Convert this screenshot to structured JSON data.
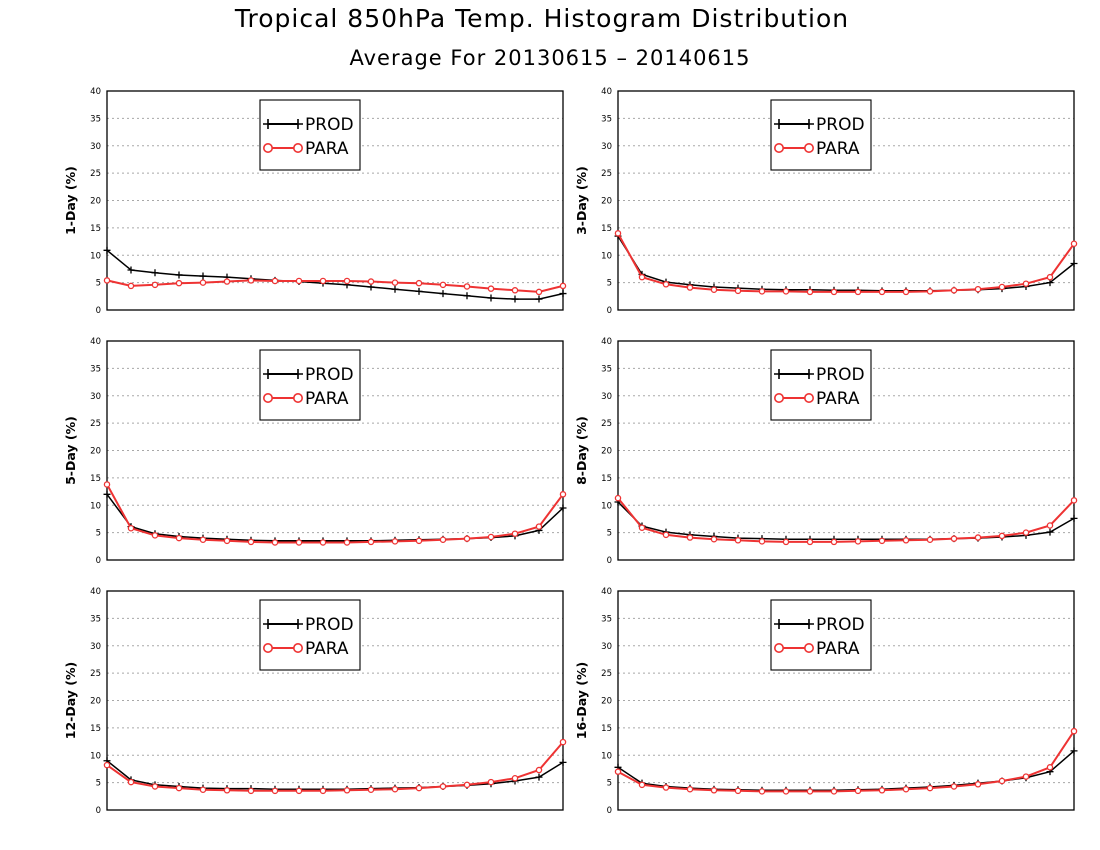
{
  "title": "Tropical 850hPa Temp. Histogram Distribution",
  "subtitle": "Average For 20130615 – 20140615",
  "colors": {
    "PROD": "#000000",
    "PARA": "#ee3333"
  },
  "chart_data": [
    {
      "type": "line",
      "ylabel": "1-Day (%)",
      "ylim": [
        0,
        40
      ],
      "yticks": [
        0,
        5,
        10,
        15,
        20,
        25,
        30,
        35,
        40
      ],
      "grid": true,
      "legend_position": "top-center",
      "series": [
        {
          "name": "PROD",
          "marker": "plus",
          "values": [
            10.9,
            7.3,
            6.8,
            6.4,
            6.2,
            6.0,
            5.7,
            5.4,
            5.2,
            4.9,
            4.6,
            4.2,
            3.8,
            3.4,
            3.0,
            2.6,
            2.2,
            2.0,
            2.0,
            3.0
          ]
        },
        {
          "name": "PARA",
          "marker": "circle",
          "values": [
            5.4,
            4.4,
            4.6,
            4.9,
            5.0,
            5.2,
            5.4,
            5.3,
            5.3,
            5.3,
            5.3,
            5.2,
            5.0,
            4.9,
            4.6,
            4.3,
            3.9,
            3.6,
            3.3,
            4.4
          ]
        }
      ]
    },
    {
      "type": "line",
      "ylabel": "3-Day (%)",
      "ylim": [
        0,
        40
      ],
      "yticks": [
        0,
        5,
        10,
        15,
        20,
        25,
        30,
        35,
        40
      ],
      "grid": true,
      "legend_position": "top-center",
      "series": [
        {
          "name": "PROD",
          "marker": "plus",
          "values": [
            13.5,
            6.5,
            5.1,
            4.6,
            4.2,
            4.0,
            3.8,
            3.7,
            3.7,
            3.6,
            3.6,
            3.5,
            3.5,
            3.5,
            3.6,
            3.7,
            3.9,
            4.3,
            5.0,
            8.5
          ]
        },
        {
          "name": "PARA",
          "marker": "circle",
          "values": [
            14.0,
            6.0,
            4.7,
            4.1,
            3.7,
            3.5,
            3.4,
            3.4,
            3.3,
            3.3,
            3.3,
            3.3,
            3.3,
            3.4,
            3.6,
            3.8,
            4.2,
            4.8,
            6.0,
            12.1
          ]
        }
      ]
    },
    {
      "type": "line",
      "ylabel": "5-Day (%)",
      "ylim": [
        0,
        40
      ],
      "yticks": [
        0,
        5,
        10,
        15,
        20,
        25,
        30,
        35,
        40
      ],
      "grid": true,
      "legend_position": "top-center",
      "series": [
        {
          "name": "PROD",
          "marker": "plus",
          "values": [
            12.0,
            6.1,
            4.8,
            4.3,
            4.0,
            3.8,
            3.6,
            3.5,
            3.5,
            3.5,
            3.5,
            3.5,
            3.6,
            3.7,
            3.8,
            3.9,
            4.1,
            4.4,
            5.4,
            9.5
          ]
        },
        {
          "name": "PARA",
          "marker": "circle",
          "values": [
            13.8,
            5.8,
            4.5,
            4.0,
            3.7,
            3.5,
            3.3,
            3.2,
            3.2,
            3.2,
            3.2,
            3.3,
            3.4,
            3.5,
            3.7,
            3.9,
            4.2,
            4.8,
            6.1,
            12.0
          ]
        }
      ]
    },
    {
      "type": "line",
      "ylabel": "8-Day (%)",
      "ylim": [
        0,
        40
      ],
      "yticks": [
        0,
        5,
        10,
        15,
        20,
        25,
        30,
        35,
        40
      ],
      "grid": true,
      "legend_position": "top-center",
      "series": [
        {
          "name": "PROD",
          "marker": "plus",
          "values": [
            10.6,
            6.2,
            5.1,
            4.6,
            4.3,
            4.0,
            3.9,
            3.8,
            3.8,
            3.8,
            3.8,
            3.8,
            3.8,
            3.8,
            3.9,
            4.0,
            4.2,
            4.5,
            5.1,
            7.6
          ]
        },
        {
          "name": "PARA",
          "marker": "circle",
          "values": [
            11.3,
            5.9,
            4.6,
            4.1,
            3.8,
            3.6,
            3.4,
            3.3,
            3.3,
            3.3,
            3.4,
            3.5,
            3.6,
            3.7,
            3.9,
            4.1,
            4.4,
            5.0,
            6.3,
            10.9
          ]
        }
      ]
    },
    {
      "type": "line",
      "ylabel": "12-Day (%)",
      "ylim": [
        0,
        40
      ],
      "yticks": [
        0,
        5,
        10,
        15,
        20,
        25,
        30,
        35,
        40
      ],
      "grid": true,
      "legend_position": "top-center",
      "series": [
        {
          "name": "PROD",
          "marker": "plus",
          "values": [
            9.0,
            5.5,
            4.6,
            4.3,
            4.0,
            3.9,
            3.9,
            3.8,
            3.8,
            3.8,
            3.8,
            3.9,
            4.0,
            4.1,
            4.3,
            4.5,
            4.8,
            5.3,
            6.0,
            8.7
          ]
        },
        {
          "name": "PARA",
          "marker": "circle",
          "values": [
            8.2,
            5.1,
            4.3,
            4.0,
            3.7,
            3.6,
            3.5,
            3.5,
            3.5,
            3.5,
            3.6,
            3.7,
            3.8,
            4.0,
            4.3,
            4.6,
            5.1,
            5.8,
            7.3,
            12.4
          ]
        }
      ]
    },
    {
      "type": "line",
      "ylabel": "16-Day (%)",
      "ylim": [
        0,
        40
      ],
      "yticks": [
        0,
        5,
        10,
        15,
        20,
        25,
        30,
        35,
        40
      ],
      "grid": true,
      "legend_position": "top-center",
      "series": [
        {
          "name": "PROD",
          "marker": "plus",
          "values": [
            7.8,
            4.9,
            4.3,
            4.0,
            3.8,
            3.7,
            3.6,
            3.6,
            3.6,
            3.6,
            3.7,
            3.8,
            4.0,
            4.2,
            4.5,
            4.9,
            5.3,
            5.9,
            7.0,
            10.8
          ]
        },
        {
          "name": "PARA",
          "marker": "circle",
          "values": [
            7.0,
            4.6,
            4.1,
            3.8,
            3.6,
            3.5,
            3.4,
            3.4,
            3.4,
            3.4,
            3.5,
            3.6,
            3.8,
            4.0,
            4.3,
            4.7,
            5.3,
            6.1,
            7.8,
            14.4
          ]
        }
      ]
    }
  ]
}
